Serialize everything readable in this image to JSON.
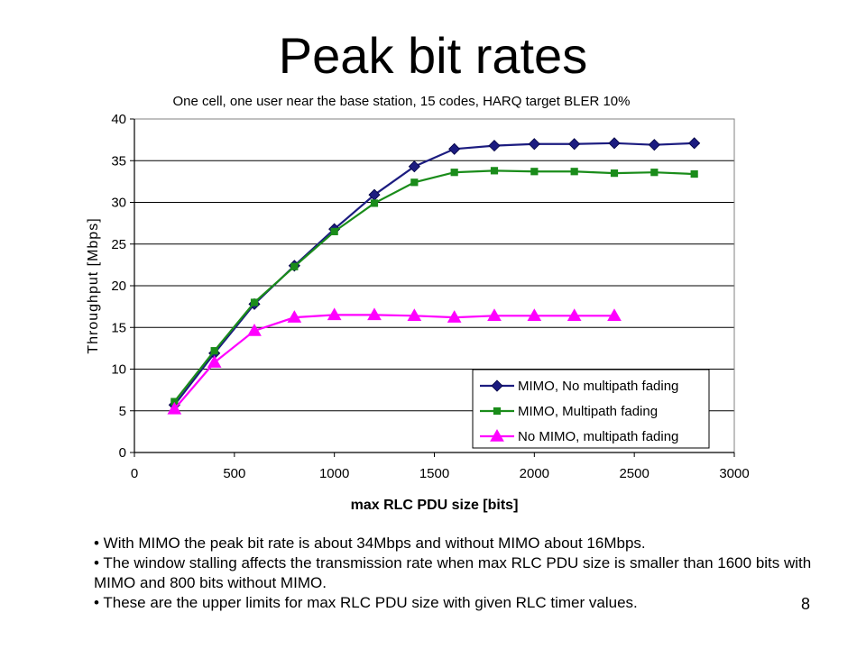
{
  "slide": {
    "title": "Peak bit rates",
    "page_number": "8",
    "bullets": [
      "• With MIMO the peak bit rate is about 34Mbps and without MIMO about 16Mbps.",
      "• The window stalling affects the transmission rate when max RLC PDU size is smaller than 1600 bits with MIMO and 800 bits without MIMO.",
      "• These are the upper limits for max RLC PDU size with given RLC timer values."
    ]
  },
  "chart_data": {
    "type": "line",
    "title": "One cell, one user near the base station, 15 codes, HARQ target BLER 10%",
    "xlabel": "max RLC PDU size [bits]",
    "ylabel": "Throughput [Mbps]",
    "xlim": [
      0,
      3000
    ],
    "ylim": [
      0,
      40
    ],
    "x_ticks": [
      0,
      500,
      1000,
      1500,
      2000,
      2500,
      3000
    ],
    "y_ticks": [
      0,
      5,
      10,
      15,
      20,
      25,
      30,
      35,
      40
    ],
    "grid": "horizontal",
    "legend_position": "bottom-right",
    "series": [
      {
        "name": "MIMO, No multipath fading",
        "color": "#1c1c80",
        "marker": "diamond",
        "x": [
          200,
          400,
          600,
          800,
          1000,
          1200,
          1400,
          1600,
          1800,
          2000,
          2200,
          2400,
          2600,
          2800
        ],
        "y": [
          5.7,
          11.9,
          17.8,
          22.4,
          26.8,
          30.9,
          34.3,
          36.4,
          36.8,
          37.0,
          37.0,
          37.1,
          36.9,
          37.1
        ]
      },
      {
        "name": "MIMO, Multipath fading",
        "color": "#1a8c1a",
        "marker": "square",
        "x": [
          200,
          400,
          600,
          800,
          1000,
          1200,
          1400,
          1600,
          1800,
          2000,
          2200,
          2400,
          2600,
          2800
        ],
        "y": [
          6.1,
          12.2,
          18.0,
          22.3,
          26.5,
          29.9,
          32.4,
          33.6,
          33.8,
          33.7,
          33.7,
          33.5,
          33.6,
          33.4
        ]
      },
      {
        "name": "No MIMO, multipath fading",
        "color": "#ff00ff",
        "marker": "triangle",
        "x": [
          200,
          400,
          600,
          800,
          1000,
          1200,
          1400,
          1600,
          1800,
          2000,
          2200,
          2400
        ],
        "y": [
          5.2,
          10.8,
          14.6,
          16.2,
          16.5,
          16.5,
          16.4,
          16.2,
          16.4,
          16.4,
          16.4,
          16.4
        ]
      }
    ]
  }
}
